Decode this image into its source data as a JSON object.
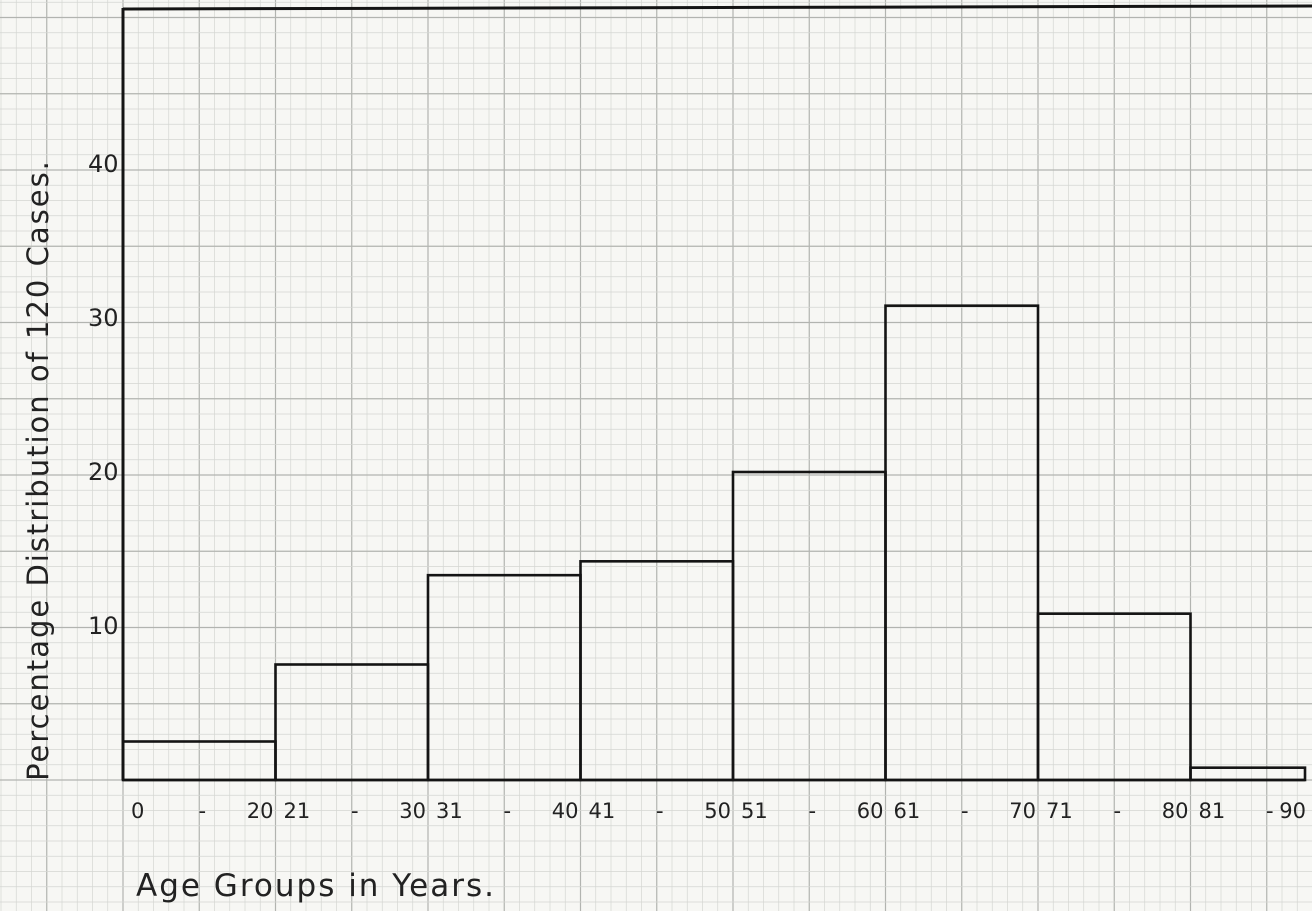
{
  "chart_data": {
    "type": "bar",
    "categories": [
      "0 - 20",
      "21 - 30",
      "31 - 40",
      "41 - 50",
      "51 - 60",
      "61 - 70",
      "71 - 80",
      "81 - 90"
    ],
    "x_tick_labels": [
      "0",
      "-",
      "20",
      "21",
      "-",
      "30",
      "31",
      "-",
      "40",
      "41",
      "-",
      "50",
      "51",
      "-",
      "60",
      "61",
      "-",
      "70",
      "71",
      "-",
      "80",
      "81",
      "-",
      "90"
    ],
    "values": [
      2.5,
      7.5,
      13.3,
      14.2,
      20,
      30.8,
      10.8,
      0.8
    ],
    "y_ticks": [
      10,
      20,
      30,
      40
    ],
    "ylim": [
      0,
      50
    ],
    "xlabel": "Age Groups in Years.",
    "ylabel": "Percentage Distribution of 120 Cases.",
    "grid": true,
    "legend": "none"
  },
  "colors": {
    "paper": "#f7f7f4",
    "grid_minor": "#d4d6d2",
    "grid_major": "#b2b4b0",
    "ink": "#141414"
  }
}
